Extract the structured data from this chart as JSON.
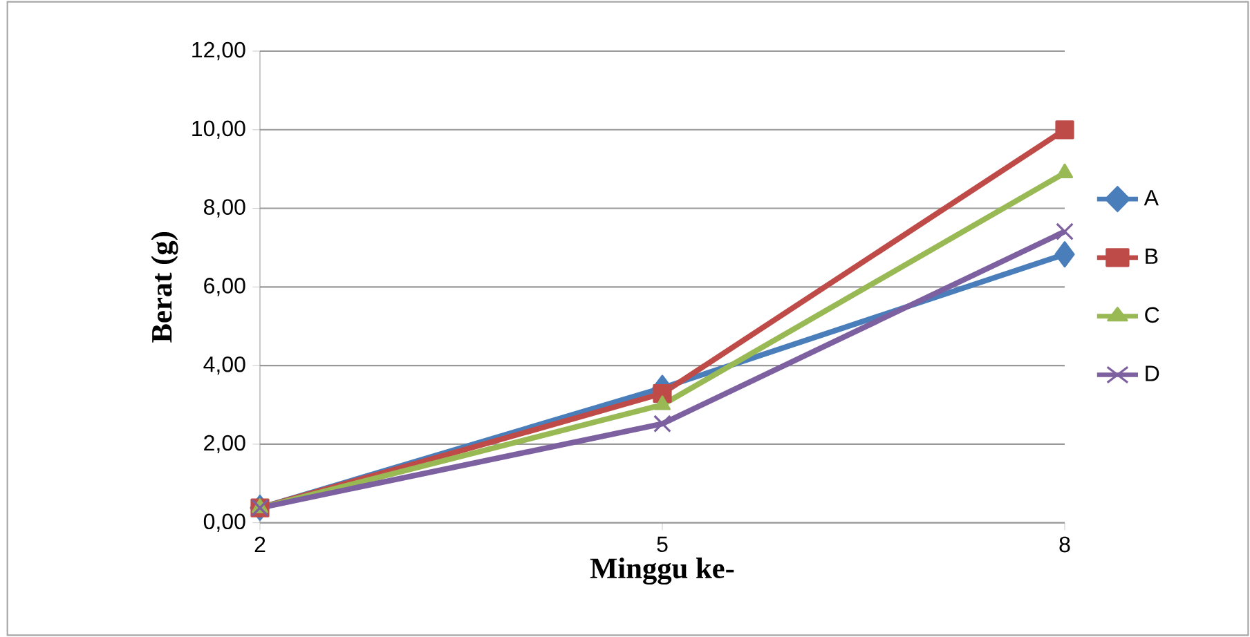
{
  "chart_data": {
    "type": "line",
    "xlabel": "Minggu ke-",
    "ylabel": "Berat (g)",
    "categories": [
      "2",
      "5",
      "8"
    ],
    "series": [
      {
        "name": "A",
        "color": "#4a7ebb",
        "marker": "diamond",
        "values": [
          0.38,
          3.43,
          6.83
        ]
      },
      {
        "name": "B",
        "color": "#be4b48",
        "marker": "square",
        "values": [
          0.38,
          3.29,
          10.0
        ]
      },
      {
        "name": "C",
        "color": "#98b954",
        "marker": "triangle",
        "values": [
          0.38,
          3.0,
          8.9
        ]
      },
      {
        "name": "D",
        "color": "#7d60a0",
        "marker": "cross",
        "values": [
          0.38,
          2.52,
          7.41
        ]
      }
    ],
    "ylim": [
      0,
      12
    ],
    "yticks": [
      {
        "value": 0,
        "label": "0,00"
      },
      {
        "value": 2,
        "label": "2,00"
      },
      {
        "value": 4,
        "label": "4,00"
      },
      {
        "value": 6,
        "label": "6,00"
      },
      {
        "value": 8,
        "label": "8,00"
      },
      {
        "value": 10,
        "label": "10,00"
      },
      {
        "value": 12,
        "label": "12,00"
      }
    ],
    "grid": "y",
    "legend": "right",
    "line_style": "solid"
  }
}
